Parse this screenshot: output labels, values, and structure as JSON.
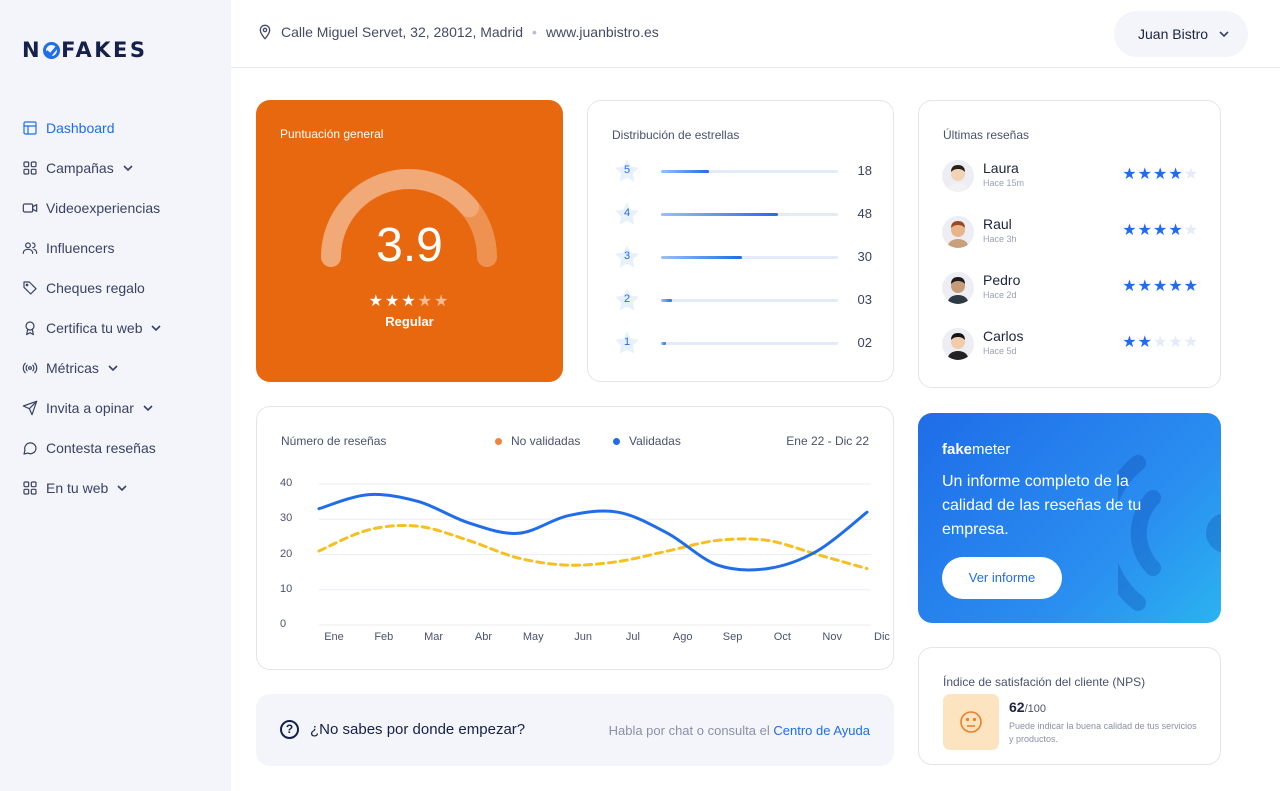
{
  "brand": {
    "logo_text": "NOFAKES",
    "logo_left": "N",
    "logo_right": "FAKES"
  },
  "sidebar": {
    "items": [
      {
        "label": "Dashboard",
        "icon": "layout-icon",
        "active": true,
        "expandable": false
      },
      {
        "label": "Campañas",
        "icon": "grid-icon",
        "expandable": true
      },
      {
        "label": "Videoexperiencias",
        "icon": "video-icon",
        "expandable": false
      },
      {
        "label": "Influencers",
        "icon": "users-icon",
        "expandable": false
      },
      {
        "label": "Cheques regalo",
        "icon": "tag-icon",
        "expandable": false
      },
      {
        "label": "Certifica tu web",
        "icon": "award-icon",
        "expandable": true
      },
      {
        "label": "Métricas",
        "icon": "broadcast-icon",
        "expandable": true
      },
      {
        "label": "Invita a opinar",
        "icon": "send-icon",
        "expandable": true
      },
      {
        "label": "Contesta reseñas",
        "icon": "message-icon",
        "expandable": false
      },
      {
        "label": "En tu web",
        "icon": "grid-icon",
        "expandable": true
      }
    ]
  },
  "header": {
    "address": "Calle Miguel Servet, 32, 28012, Madrid",
    "separator": "•",
    "website": "www.juanbistro.es",
    "user": "Juan Bistro"
  },
  "score_card": {
    "title": "Puntuación general",
    "value": "3.9",
    "label": "Regular",
    "rating": 3.9,
    "max": 5,
    "stars_filled": 3
  },
  "distribution": {
    "title": "Distribución de estrellas",
    "rows": [
      {
        "stars": "5",
        "count": "18",
        "fraction": 0.27
      },
      {
        "stars": "4",
        "count": "48",
        "fraction": 0.66
      },
      {
        "stars": "3",
        "count": "30",
        "fraction": 0.46
      },
      {
        "stars": "2",
        "count": "03",
        "fraction": 0.06
      },
      {
        "stars": "1",
        "count": "02",
        "fraction": 0.03
      }
    ]
  },
  "reviews": {
    "title": "Últimas reseñas",
    "items": [
      {
        "name": "Laura",
        "time": "Hace 15m",
        "rating": 4
      },
      {
        "name": "Raul",
        "time": "Hace 3h",
        "rating": 4
      },
      {
        "name": "Pedro",
        "time": "Hace 2d",
        "rating": 5
      },
      {
        "name": "Carlos",
        "time": "Hace 5d",
        "rating": 2
      }
    ]
  },
  "chart_card": {
    "title": "Número de reseñas",
    "legend_unvalidated": "No validadas",
    "legend_validated": "Validadas",
    "range": "Ene 22 - Dic 22"
  },
  "chart_data": {
    "type": "line",
    "categories": [
      "Ene",
      "Feb",
      "Mar",
      "Abr",
      "May",
      "Jun",
      "Jul",
      "Ago",
      "Sep",
      "Oct",
      "Nov",
      "Dic"
    ],
    "ylim": [
      0,
      40
    ],
    "yticks": [
      "40",
      "30",
      "20",
      "10",
      "0"
    ],
    "series": [
      {
        "name": "Validadas",
        "color": "#1f6de8",
        "style": "solid",
        "values": [
          33,
          37,
          35,
          29,
          26,
          31,
          32,
          26,
          17,
          16,
          21,
          32
        ]
      },
      {
        "name": "No validadas",
        "color": "#f5c020",
        "style": "dashed",
        "values": [
          21,
          27,
          28,
          24,
          19,
          17,
          18,
          21,
          24,
          24,
          20,
          16
        ]
      }
    ],
    "grid": true,
    "legend_position": "top"
  },
  "help": {
    "question": "¿No sabes por donde empezar?",
    "hint": "Habla por chat o consulta el",
    "link": "Centro de Ayuda"
  },
  "fakemeter": {
    "brand_bold": "fake",
    "brand_rest": "meter",
    "text": "Un informe completo de la calidad de las reseñas de tu empresa.",
    "button": "Ver informe"
  },
  "nps": {
    "title": "Índice de satisfación del cliente (NPS)",
    "value": "62",
    "max": "/100",
    "description": "Puede indicar la buena calidad de tus servicios y productos.",
    "icon": "neutral-face-icon"
  },
  "colors": {
    "accent": "#1f6de8",
    "orange": "#e8680f",
    "star": "#1f6de8",
    "star_empty": "#e3eaf8"
  }
}
